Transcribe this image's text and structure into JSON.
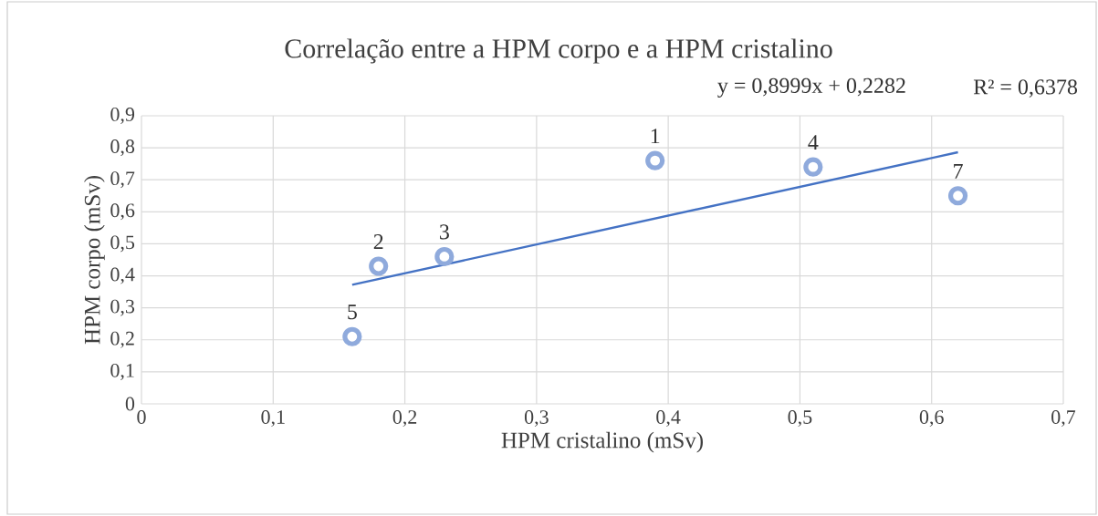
{
  "chart_data": {
    "type": "scatter",
    "title": "Correlação entre a HPM corpo e a HPM cristalino",
    "xlabel": "HPM cristalino (mSv)",
    "ylabel": "HPM corpo (mSv)",
    "series": [
      {
        "color": "#8faadc",
        "marker": "circle",
        "x": [
          0.16,
          0.18,
          0.23,
          0.39,
          0.51,
          0.62
        ],
        "values": [
          0.21,
          0.43,
          0.46,
          0.76,
          0.74,
          0.65
        ]
      },
      {
        "type": "line",
        "color": "#4472c4",
        "marker": "none",
        "x": [
          0.16,
          0.62
        ],
        "values": [
          0.372,
          0.786
        ]
      }
    ],
    "xlim": [
      0,
      0.7
    ],
    "xticks": [
      0,
      {
        "value": 0.1,
        "label": "0,1"
      },
      {
        "value": 0.2,
        "label": "0,2"
      },
      {
        "value": 0.3,
        "label": "0,3"
      },
      {
        "value": 0.4,
        "label": "0,4"
      },
      {
        "value": 0.5,
        "label": "0,5"
      },
      {
        "value": 0.6,
        "label": "0,6"
      },
      {
        "value": 0.7,
        "label": "0,7"
      }
    ],
    "ylim": [
      0,
      0.9
    ],
    "yticks": [
      0,
      {
        "value": 0.1,
        "label": "0,1"
      },
      {
        "value": 0.2,
        "label": "0,2"
      },
      {
        "value": 0.3,
        "label": "0,3"
      },
      {
        "value": 0.4,
        "label": "0,4"
      },
      {
        "value": 0.5,
        "label": "0,5"
      },
      {
        "value": 0.6,
        "label": "0,6"
      },
      {
        "value": 0.7,
        "label": "0,7"
      },
      {
        "value": 0.8,
        "label": "0,8"
      },
      {
        "value": 0.9,
        "label": "0,9"
      }
    ],
    "grid": true,
    "annotations": [
      {
        "text": "5",
        "x": 0.16,
        "y": 0.21
      },
      {
        "text": "2",
        "x": 0.18,
        "y": 0.43
      },
      {
        "text": "3",
        "x": 0.23,
        "y": 0.46
      },
      {
        "text": "1",
        "x": 0.39,
        "y": 0.76
      },
      {
        "text": "4",
        "x": 0.51,
        "y": 0.74
      },
      {
        "text": "7",
        "x": 0.62,
        "y": 0.65
      },
      "y = 0,8999x + 0,2282",
      "R² = 0,6378"
    ]
  }
}
